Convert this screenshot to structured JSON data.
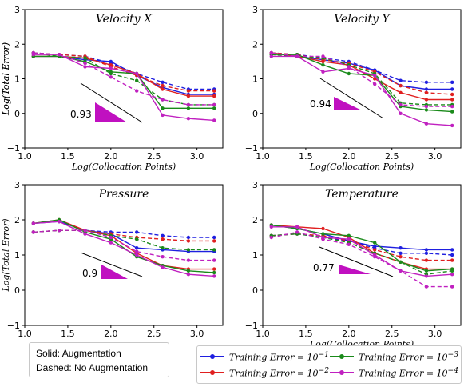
{
  "figure": {
    "note_lines": [
      "Solid: Augmentation",
      "Dashed: No Augmentation"
    ],
    "legend_entries": [
      {
        "label": "Training Error = 10",
        "exponent": "−1",
        "color": "#1f1fe0"
      },
      {
        "label": "Training Error = 10",
        "exponent": "−2",
        "color": "#e01f1f"
      },
      {
        "label": "Training Error = 10",
        "exponent": "−3",
        "color": "#1a8a1a"
      },
      {
        "label": "Training Error = 10",
        "exponent": "−4",
        "color": "#c020c0"
      }
    ]
  },
  "chart_data": [
    {
      "type": "line",
      "title": "Velocity X",
      "xlabel": "Log(Collocation Points)",
      "ylabel": "Log(Total Error)",
      "xlim": [
        1.0,
        3.3
      ],
      "ylim": [
        -1,
        3
      ],
      "xticks": [
        "1.0",
        "1.5",
        "2.0",
        "2.5",
        "3.0"
      ],
      "yticks": [
        "−1",
        "0",
        "1",
        "2",
        "3"
      ],
      "x": [
        1.1,
        1.4,
        1.7,
        2.0,
        2.3,
        2.6,
        2.9,
        3.2
      ],
      "slope_label": "0.93",
      "series": [
        {
          "name": "Training Error = 10^-1",
          "style": "solid",
          "color": "#1f1fe0",
          "values": [
            1.65,
            1.65,
            1.55,
            1.5,
            1.1,
            0.75,
            0.55,
            0.55
          ]
        },
        {
          "name": "Training Error = 10^-1",
          "style": "dashed",
          "color": "#1f1fe0",
          "values": [
            1.75,
            1.7,
            1.65,
            1.45,
            1.15,
            0.9,
            0.7,
            0.7
          ]
        },
        {
          "name": "Training Error = 10^-2",
          "style": "solid",
          "color": "#e01f1f",
          "values": [
            1.65,
            1.65,
            1.6,
            1.4,
            1.15,
            0.7,
            0.5,
            0.5
          ]
        },
        {
          "name": "Training Error = 10^-2",
          "style": "dashed",
          "color": "#e01f1f",
          "values": [
            1.75,
            1.7,
            1.65,
            1.35,
            1.1,
            0.8,
            0.65,
            0.65
          ]
        },
        {
          "name": "Training Error = 10^-3",
          "style": "solid",
          "color": "#1a8a1a",
          "values": [
            1.65,
            1.65,
            1.5,
            1.2,
            1.15,
            0.15,
            0.15,
            0.15
          ]
        },
        {
          "name": "Training Error = 10^-3",
          "style": "dashed",
          "color": "#1a8a1a",
          "values": [
            1.75,
            1.65,
            1.6,
            1.15,
            0.95,
            0.4,
            0.25,
            0.25
          ]
        },
        {
          "name": "Training Error = 10^-4",
          "style": "solid",
          "color": "#c020c0",
          "values": [
            1.7,
            1.7,
            1.35,
            1.3,
            1.15,
            -0.05,
            -0.15,
            -0.2
          ]
        },
        {
          "name": "Training Error = 10^-4",
          "style": "dashed",
          "color": "#c020c0",
          "values": [
            1.75,
            1.7,
            1.45,
            1.05,
            0.65,
            0.4,
            0.25,
            0.25
          ]
        }
      ]
    },
    {
      "type": "line",
      "title": "Velocity Y",
      "xlabel": "Log(Collocation Points)",
      "ylabel": "Log(Total Error)",
      "xlim": [
        1.0,
        3.3
      ],
      "ylim": [
        -1,
        3
      ],
      "xticks": [
        "1.0",
        "1.5",
        "2.0",
        "2.5",
        "3.0"
      ],
      "yticks": [
        "−1",
        "0",
        "1",
        "2",
        "3"
      ],
      "x": [
        1.1,
        1.4,
        1.7,
        2.0,
        2.3,
        2.6,
        2.9,
        3.2
      ],
      "slope_label": "0.94",
      "series": [
        {
          "name": "Training Error = 10^-1",
          "style": "solid",
          "color": "#1f1fe0",
          "values": [
            1.75,
            1.65,
            1.55,
            1.45,
            1.25,
            0.8,
            0.7,
            0.7
          ]
        },
        {
          "name": "Training Error = 10^-1",
          "style": "dashed",
          "color": "#1f1fe0",
          "values": [
            1.75,
            1.7,
            1.6,
            1.5,
            1.25,
            0.95,
            0.9,
            0.9
          ]
        },
        {
          "name": "Training Error = 10^-2",
          "style": "solid",
          "color": "#e01f1f",
          "values": [
            1.75,
            1.65,
            1.5,
            1.4,
            1.0,
            0.6,
            0.4,
            0.4
          ]
        },
        {
          "name": "Training Error = 10^-2",
          "style": "dashed",
          "color": "#e01f1f",
          "values": [
            1.75,
            1.7,
            1.55,
            1.45,
            1.2,
            0.8,
            0.6,
            0.55
          ]
        },
        {
          "name": "Training Error = 10^-3",
          "style": "solid",
          "color": "#1a8a1a",
          "values": [
            1.7,
            1.7,
            1.4,
            1.15,
            1.1,
            0.2,
            0.1,
            0.05
          ]
        },
        {
          "name": "Training Error = 10^-3",
          "style": "dashed",
          "color": "#1a8a1a",
          "values": [
            1.7,
            1.65,
            1.6,
            1.4,
            1.15,
            0.3,
            0.25,
            0.25
          ]
        },
        {
          "name": "Training Error = 10^-4",
          "style": "solid",
          "color": "#c020c0",
          "values": [
            1.65,
            1.65,
            1.2,
            1.3,
            1.1,
            0.0,
            -0.3,
            -0.35
          ]
        },
        {
          "name": "Training Error = 10^-4",
          "style": "dashed",
          "color": "#c020c0",
          "values": [
            1.75,
            1.65,
            1.65,
            1.35,
            0.85,
            0.25,
            0.2,
            0.2
          ]
        }
      ]
    },
    {
      "type": "line",
      "title": "Pressure",
      "xlabel": "",
      "ylabel": "Log(Total Error)",
      "xlim": [
        1.0,
        3.3
      ],
      "ylim": [
        -1,
        3
      ],
      "xticks": [
        "1.0",
        "1.5",
        "2.0",
        "2.5",
        "3.0"
      ],
      "yticks": [
        "−1",
        "0",
        "1",
        "2",
        "3"
      ],
      "x": [
        1.1,
        1.4,
        1.7,
        2.0,
        2.3,
        2.6,
        2.9,
        3.2
      ],
      "slope_label": "0.9",
      "series": [
        {
          "name": "Training Error = 10^-1",
          "style": "solid",
          "color": "#1f1fe0",
          "values": [
            1.9,
            1.95,
            1.7,
            1.6,
            1.2,
            1.15,
            1.1,
            1.1
          ]
        },
        {
          "name": "Training Error = 10^-1",
          "style": "dashed",
          "color": "#1f1fe0",
          "values": [
            1.65,
            1.7,
            1.7,
            1.65,
            1.65,
            1.55,
            1.5,
            1.5
          ]
        },
        {
          "name": "Training Error = 10^-2",
          "style": "solid",
          "color": "#e01f1f",
          "values": [
            1.9,
            2.0,
            1.7,
            1.55,
            1.05,
            0.7,
            0.6,
            0.6
          ]
        },
        {
          "name": "Training Error = 10^-2",
          "style": "dashed",
          "color": "#e01f1f",
          "values": [
            1.65,
            1.7,
            1.7,
            1.6,
            1.5,
            1.45,
            1.4,
            1.4
          ]
        },
        {
          "name": "Training Error = 10^-3",
          "style": "solid",
          "color": "#1a8a1a",
          "values": [
            1.9,
            2.0,
            1.65,
            1.45,
            0.95,
            0.7,
            0.55,
            0.5
          ]
        },
        {
          "name": "Training Error = 10^-3",
          "style": "dashed",
          "color": "#1a8a1a",
          "values": [
            1.65,
            1.7,
            1.7,
            1.55,
            1.45,
            1.2,
            1.15,
            1.15
          ]
        },
        {
          "name": "Training Error = 10^-4",
          "style": "solid",
          "color": "#c020c0",
          "values": [
            1.9,
            1.95,
            1.6,
            1.35,
            1.0,
            0.65,
            0.45,
            0.4
          ]
        },
        {
          "name": "Training Error = 10^-4",
          "style": "dashed",
          "color": "#c020c0",
          "values": [
            1.65,
            1.7,
            1.7,
            1.5,
            1.1,
            0.95,
            0.85,
            0.85
          ]
        }
      ]
    },
    {
      "type": "line",
      "title": "Temperature",
      "xlabel": "Log(Collocation Points)",
      "ylabel": "",
      "xlim": [
        1.0,
        3.3
      ],
      "ylim": [
        -1,
        3
      ],
      "xticks": [
        "1.0",
        "1.5",
        "2.0",
        "2.5",
        "3.0"
      ],
      "yticks": [
        "−1",
        "0",
        "1",
        "2",
        "3"
      ],
      "x": [
        1.1,
        1.4,
        1.7,
        2.0,
        2.3,
        2.6,
        2.9,
        3.2
      ],
      "slope_label": "0.77",
      "series": [
        {
          "name": "Training Error = 10^-1",
          "style": "solid",
          "color": "#1f1fe0",
          "values": [
            1.85,
            1.75,
            1.6,
            1.4,
            1.25,
            1.2,
            1.15,
            1.15
          ]
        },
        {
          "name": "Training Error = 10^-1",
          "style": "dashed",
          "color": "#1f1fe0",
          "values": [
            1.55,
            1.6,
            1.5,
            1.4,
            1.2,
            1.05,
            1.05,
            1.0
          ]
        },
        {
          "name": "Training Error = 10^-2",
          "style": "solid",
          "color": "#e01f1f",
          "values": [
            1.85,
            1.8,
            1.75,
            1.5,
            1.05,
            0.8,
            0.6,
            0.6
          ]
        },
        {
          "name": "Training Error = 10^-2",
          "style": "dashed",
          "color": "#e01f1f",
          "values": [
            1.55,
            1.6,
            1.55,
            1.4,
            1.15,
            0.95,
            0.85,
            0.85
          ]
        },
        {
          "name": "Training Error = 10^-3",
          "style": "solid",
          "color": "#1a8a1a",
          "values": [
            1.85,
            1.75,
            1.6,
            1.55,
            1.35,
            0.8,
            0.55,
            0.6
          ]
        },
        {
          "name": "Training Error = 10^-3",
          "style": "dashed",
          "color": "#1a8a1a",
          "values": [
            1.55,
            1.6,
            1.5,
            1.35,
            1.05,
            0.8,
            0.45,
            0.55
          ]
        },
        {
          "name": "Training Error = 10^-4",
          "style": "solid",
          "color": "#c020c0",
          "values": [
            1.8,
            1.8,
            1.5,
            1.45,
            1.0,
            0.55,
            0.4,
            0.45
          ]
        },
        {
          "name": "Training Error = 10^-4",
          "style": "dashed",
          "color": "#c020c0",
          "values": [
            1.5,
            1.65,
            1.45,
            1.3,
            0.95,
            0.55,
            0.1,
            0.1
          ]
        }
      ]
    }
  ]
}
